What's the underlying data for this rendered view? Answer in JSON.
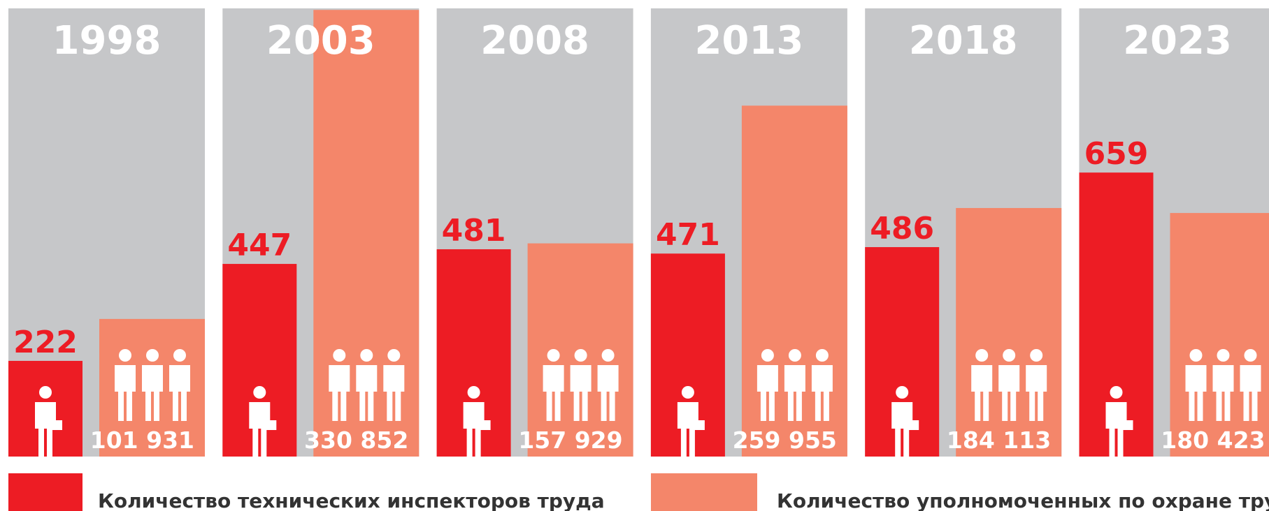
{
  "chart_data": {
    "type": "bar",
    "categories": [
      "1998",
      "2003",
      "2008",
      "2013",
      "2018",
      "2023"
    ],
    "series": [
      {
        "name": "Количество технических инспекторов труда",
        "color": "#ed1c24",
        "values": [
          222,
          447,
          481,
          471,
          486,
          659
        ]
      },
      {
        "name": "Количество уполномоченных  по охране труда",
        "color": "#f4866a",
        "axis": "y2",
        "values": [
          101931,
          330852,
          157929,
          259955,
          184113,
          180423
        ],
        "value_labels": [
          "101 931",
          "330 852",
          "157 929",
          "259 955",
          "184 113",
          "180 423"
        ]
      }
    ],
    "ylim": [
      0,
      1040
    ],
    "y2lim": [
      0,
      332000
    ]
  }
}
